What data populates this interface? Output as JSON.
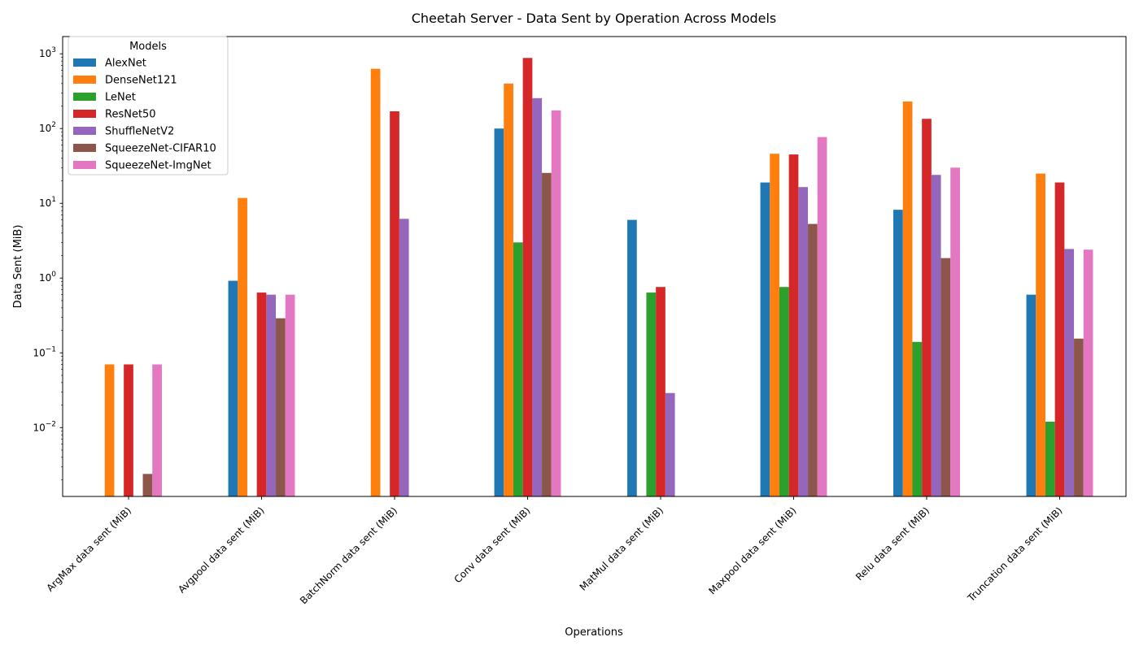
{
  "chart_data": {
    "type": "bar",
    "title": "Cheetah Server - Data Sent by Operation Across Models",
    "xlabel": "Operations",
    "ylabel": "Data Sent (MiB)",
    "yscale": "log",
    "ylim": [
      0.0012,
      1700
    ],
    "yticks": [
      {
        "value": 0.01,
        "base": "10",
        "exp": "−2"
      },
      {
        "value": 0.1,
        "base": "10",
        "exp": "−1"
      },
      {
        "value": 1,
        "base": "10",
        "exp": "0"
      },
      {
        "value": 10,
        "base": "10",
        "exp": "1"
      },
      {
        "value": 100,
        "base": "10",
        "exp": "2"
      },
      {
        "value": 1000,
        "base": "10",
        "exp": "3"
      }
    ],
    "grid": false,
    "legend": {
      "title": "Models",
      "position": "top-left"
    },
    "categories": [
      "ArgMax data sent (MiB)",
      "Avgpool data sent (MiB)",
      "BatchNorm data sent (MiB)",
      "Conv data sent (MiB)",
      "MatMul data sent (MiB)",
      "Maxpool data sent (MiB)",
      "Relu data sent (MiB)",
      "Truncation data sent (MiB)"
    ],
    "series": [
      {
        "name": "AlexNet",
        "color": "#1f77b4",
        "values": [
          null,
          0.92,
          null,
          100,
          6.0,
          19,
          8.2,
          0.6
        ]
      },
      {
        "name": "DenseNet121",
        "color": "#ff7f0e",
        "values": [
          0.07,
          11.8,
          630,
          400,
          null,
          46,
          230,
          25
        ]
      },
      {
        "name": "LeNet",
        "color": "#2ca02c",
        "values": [
          null,
          null,
          null,
          3.0,
          0.64,
          0.76,
          0.14,
          0.012
        ]
      },
      {
        "name": "ResNet50",
        "color": "#d62728",
        "values": [
          0.07,
          0.64,
          170,
          880,
          0.76,
          45,
          135,
          19
        ]
      },
      {
        "name": "ShuffleNetV2",
        "color": "#9467bd",
        "values": [
          null,
          0.6,
          6.2,
          255,
          0.029,
          16.5,
          24,
          2.45
        ]
      },
      {
        "name": "SqueezeNet-CIFAR10",
        "color": "#8c564b",
        "values": [
          0.0024,
          0.29,
          null,
          25.5,
          null,
          5.3,
          1.85,
          0.155
        ]
      },
      {
        "name": "SqueezeNet-ImgNet",
        "color": "#e377c2",
        "values": [
          0.07,
          0.6,
          null,
          175,
          null,
          77,
          30,
          2.4
        ]
      }
    ]
  }
}
